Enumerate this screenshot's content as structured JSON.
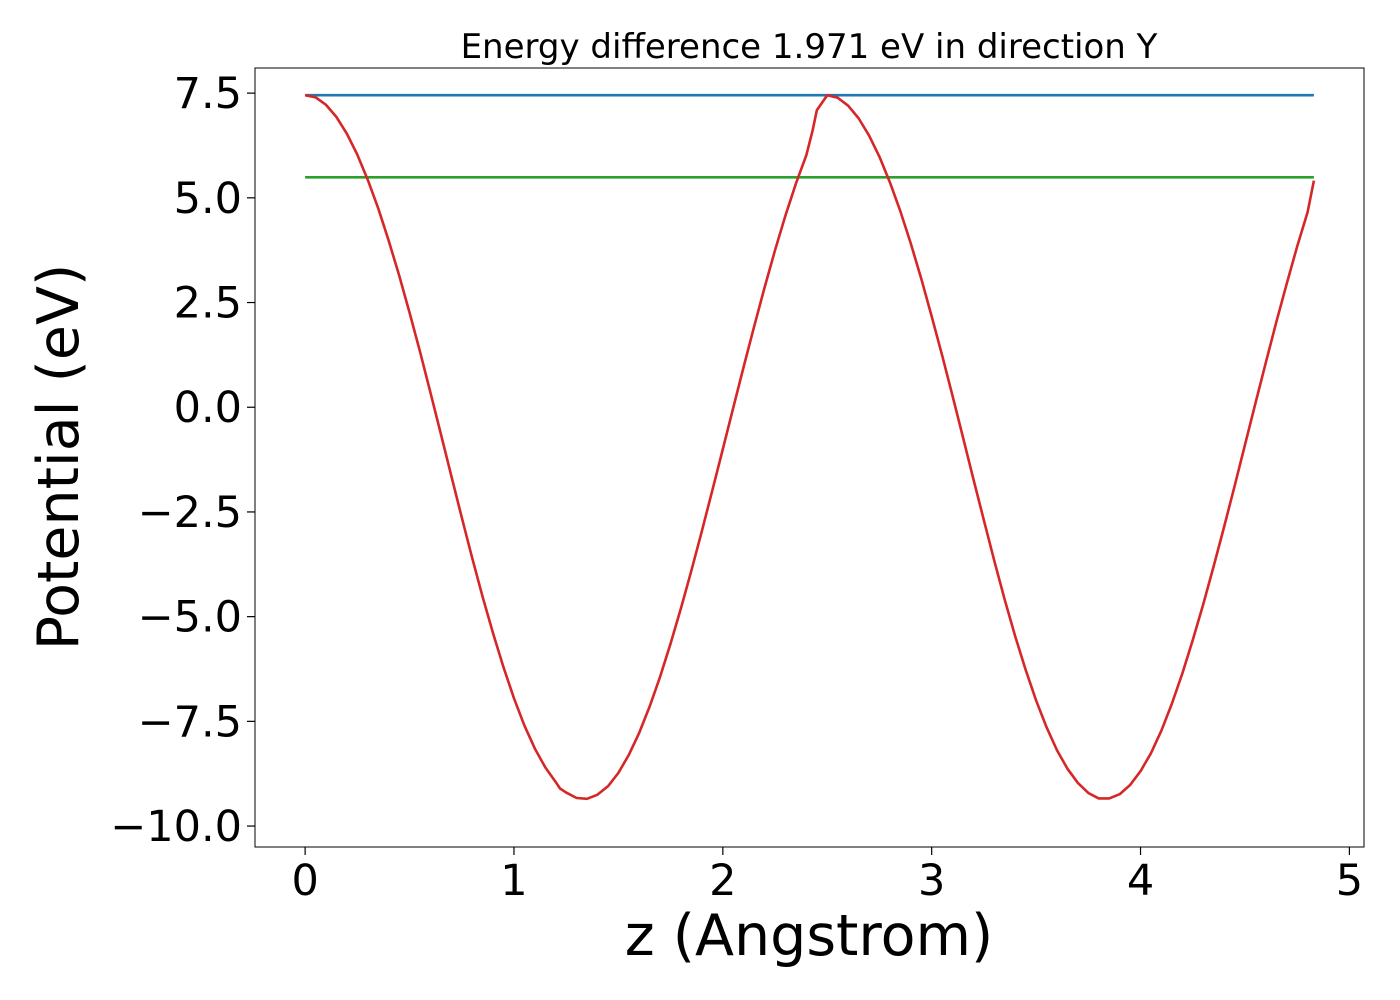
{
  "chart_data": {
    "type": "line",
    "title": "Energy difference 1.971 eV in direction Y",
    "xlabel": "z (Angstrom)",
    "ylabel": "Potential (eV)",
    "xlim": [
      -0.24,
      5.07
    ],
    "ylim": [
      -10.5,
      8.1
    ],
    "x_ticks": [
      0,
      1,
      2,
      3,
      4,
      5
    ],
    "x_tick_labels": [
      "0",
      "1",
      "2",
      "3",
      "4",
      "5"
    ],
    "y_ticks": [
      7.5,
      5.0,
      2.5,
      0.0,
      -2.5,
      -5.0,
      -7.5,
      -10.0
    ],
    "y_tick_labels": [
      "7.5",
      "5.0",
      "2.5",
      "0.0",
      "−2.5",
      "−5.0",
      "−7.5",
      "−10.0"
    ],
    "grid": false,
    "legend": "none",
    "series": [
      {
        "kind": "hline",
        "color": "#1f77b4",
        "x": [
          0.0,
          4.83
        ],
        "y": [
          7.45,
          7.45
        ]
      },
      {
        "kind": "hline",
        "color": "#2ca02c",
        "x": [
          0.0,
          4.83
        ],
        "y": [
          5.49,
          5.49
        ]
      },
      {
        "kind": "line",
        "color": "#d62728",
        "x": [
          0.0,
          0.05,
          0.1,
          0.15,
          0.2,
          0.25,
          0.3,
          0.35,
          0.4,
          0.45,
          0.5,
          0.55,
          0.6,
          0.65,
          0.7,
          0.75,
          0.8,
          0.85,
          0.9,
          0.95,
          1.0,
          1.05,
          1.1,
          1.15,
          1.2,
          1.22,
          1.25,
          1.3,
          1.35,
          1.4,
          1.45,
          1.5,
          1.55,
          1.6,
          1.65,
          1.7,
          1.75,
          1.8,
          1.85,
          1.9,
          1.95,
          2.0,
          2.05,
          2.1,
          2.15,
          2.2,
          2.25,
          2.3,
          2.35,
          2.4,
          2.43,
          2.45,
          2.5,
          2.55,
          2.6,
          2.65,
          2.7,
          2.75,
          2.8,
          2.85,
          2.9,
          2.95,
          3.0,
          3.05,
          3.1,
          3.15,
          3.2,
          3.25,
          3.3,
          3.35,
          3.4,
          3.45,
          3.5,
          3.55,
          3.6,
          3.65,
          3.7,
          3.75,
          3.8,
          3.85,
          3.9,
          3.95,
          4.0,
          4.05,
          4.1,
          4.15,
          4.2,
          4.25,
          4.3,
          4.35,
          4.4,
          4.45,
          4.5,
          4.55,
          4.6,
          4.65,
          4.7,
          4.75,
          4.8,
          4.83
        ],
        "y": [
          7.45,
          7.4,
          7.22,
          6.93,
          6.53,
          6.03,
          5.43,
          4.75,
          3.98,
          3.15,
          2.26,
          1.33,
          0.35,
          -0.64,
          -1.64,
          -2.63,
          -3.6,
          -4.53,
          -5.4,
          -6.21,
          -6.95,
          -7.6,
          -8.15,
          -8.6,
          -8.95,
          -9.1,
          -9.2,
          -9.33,
          -9.35,
          -9.25,
          -9.05,
          -8.73,
          -8.3,
          -7.77,
          -7.14,
          -6.43,
          -5.64,
          -4.79,
          -3.89,
          -2.95,
          -1.98,
          -1.0,
          -0.01,
          0.97,
          1.93,
          2.86,
          3.75,
          4.58,
          5.34,
          6.02,
          6.61,
          7.09,
          7.45,
          7.39,
          7.2,
          6.9,
          6.49,
          5.98,
          5.37,
          4.68,
          3.91,
          3.07,
          2.17,
          1.24,
          0.27,
          -0.72,
          -1.72,
          -2.7,
          -3.67,
          -4.6,
          -5.47,
          -6.27,
          -7.0,
          -7.64,
          -8.19,
          -8.63,
          -8.97,
          -9.21,
          -9.34,
          -9.34,
          -9.24,
          -9.02,
          -8.69,
          -8.26,
          -7.72,
          -7.08,
          -6.36,
          -5.56,
          -4.71,
          -3.8,
          -2.86,
          -1.89,
          -0.9,
          0.09,
          1.07,
          2.03,
          2.95,
          3.84,
          4.66,
          5.41
        ],
        "y_note": ""
      }
    ]
  }
}
